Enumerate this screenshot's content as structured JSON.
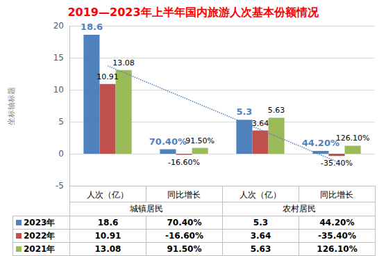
{
  "chart_data": {
    "type": "bar",
    "title": "2019—2023年上半年国内旅游人次基本份额情况",
    "y_label": "坐标轴标题",
    "categories": [
      "人次（亿）",
      "同比增长",
      "人次（亿）",
      "同比增长"
    ],
    "groups": [
      "城镇居民",
      "农村居民"
    ],
    "series": [
      {
        "name": "2023年",
        "color": "#4F81BD",
        "values": [
          18.6,
          0.704,
          5.3,
          0.442
        ],
        "value_labels": [
          "18.6",
          "70.40%",
          "5.3",
          "44.20%"
        ]
      },
      {
        "name": "2022年",
        "color": "#C0504D",
        "values": [
          10.91,
          -0.166,
          3.64,
          -0.354
        ],
        "value_labels": [
          "10.91",
          "-16.60%",
          "3.64",
          "-35.40%"
        ]
      },
      {
        "name": "2021年",
        "color": "#9BBB59",
        "values": [
          13.08,
          0.915,
          5.63,
          1.261
        ],
        "value_labels": [
          "13.08",
          "91.50%",
          "5.63",
          "126.10%"
        ]
      },
      {
        "type": "line",
        "color": "#4F81BD",
        "line_style": "dotted",
        "values": [
          13.74,
          8.75,
          3.76,
          -1.22
        ]
      }
    ],
    "ylim": [
      -5,
      20
    ],
    "yticks": [
      -5,
      0,
      5,
      10,
      15,
      20
    ],
    "grid": true,
    "data_labels": true
  }
}
